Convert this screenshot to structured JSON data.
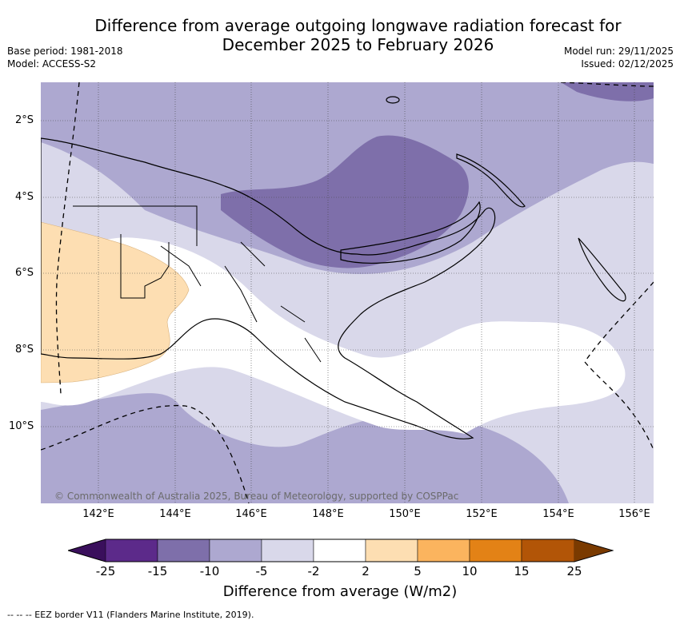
{
  "header": {
    "title_line1": "Difference from average outgoing longwave radiation forecast for",
    "title_line2": "December 2025 to February 2026",
    "base_period": "Base period: 1981-2018",
    "model": "Model: ACCESS-S2",
    "model_run": "Model run: 29/11/2025",
    "issued": "Issued: 02/12/2025"
  },
  "map": {
    "region": "Papua New Guinea",
    "copyright": "© Commonwealth of Australia 2025, Bureau of Meteorology, supported by COSPPac",
    "lat_labels": [
      "2°S",
      "4°S",
      "6°S",
      "8°S",
      "10°S"
    ],
    "lon_labels": [
      "142°E",
      "144°E",
      "146°E",
      "148°E",
      "150°E",
      "152°E",
      "154°E",
      "156°E"
    ]
  },
  "colorbar": {
    "label": "Difference from average (W/m2)",
    "ticks": [
      "-25",
      "-15",
      "-10",
      "-5",
      "-2",
      "2",
      "5",
      "10",
      "15",
      "25"
    ],
    "colors": {
      "below_min": "#3a0f5c",
      "c1": "#5c2a8a",
      "c2": "#7e6faa",
      "c3": "#ada8d0",
      "c4": "#d9d8ea",
      "c5": "#ffffff",
      "c6": "#fddeb2",
      "c7": "#fbb45e",
      "c8": "#e38216",
      "c9": "#b25507",
      "above_max": "#7a3a00"
    }
  },
  "footer": {
    "eez_note": "--  --  -- EEZ border V11 (Flanders Marine Institute, 2019)."
  }
}
